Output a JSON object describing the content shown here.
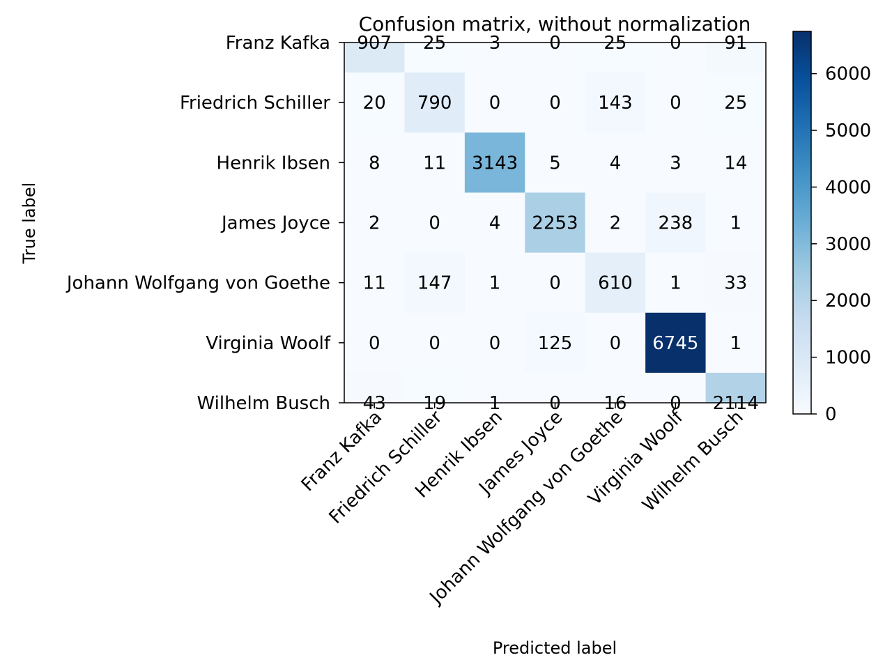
{
  "chart_data": {
    "type": "heatmap",
    "title": "Confusion matrix, without normalization",
    "xlabel": "Predicted label",
    "ylabel": "True label",
    "row_labels": [
      "Franz Kafka",
      "Friedrich Schiller",
      "Henrik Ibsen",
      "James Joyce",
      "Johann Wolfgang von Goethe",
      "Virginia Woolf",
      "Wilhelm Busch"
    ],
    "col_labels": [
      "Franz Kafka",
      "Friedrich Schiller",
      "Henrik Ibsen",
      "James Joyce",
      "Johann Wolfgang von Goethe",
      "Virginia Woolf",
      "Wilhelm Busch"
    ],
    "values": [
      [
        907,
        25,
        3,
        0,
        25,
        0,
        91
      ],
      [
        20,
        790,
        0,
        0,
        143,
        0,
        25
      ],
      [
        8,
        11,
        3143,
        5,
        4,
        3,
        14
      ],
      [
        2,
        0,
        4,
        2253,
        2,
        238,
        1
      ],
      [
        11,
        147,
        1,
        0,
        610,
        1,
        33
      ],
      [
        0,
        0,
        0,
        125,
        0,
        6745,
        1
      ],
      [
        43,
        19,
        1,
        0,
        16,
        0,
        2114
      ]
    ],
    "colormap": "Blues",
    "colorbar": {
      "range": [
        0,
        6745
      ],
      "ticks": [
        0,
        1000,
        2000,
        3000,
        4000,
        5000,
        6000
      ],
      "tick_labels": [
        "0",
        "1000",
        "2000",
        "3000",
        "4000",
        "5000",
        "6000"
      ]
    },
    "text_color_threshold": 3372.5,
    "text_colors": {
      "dark": "#000000",
      "light": "#ffffff"
    }
  }
}
